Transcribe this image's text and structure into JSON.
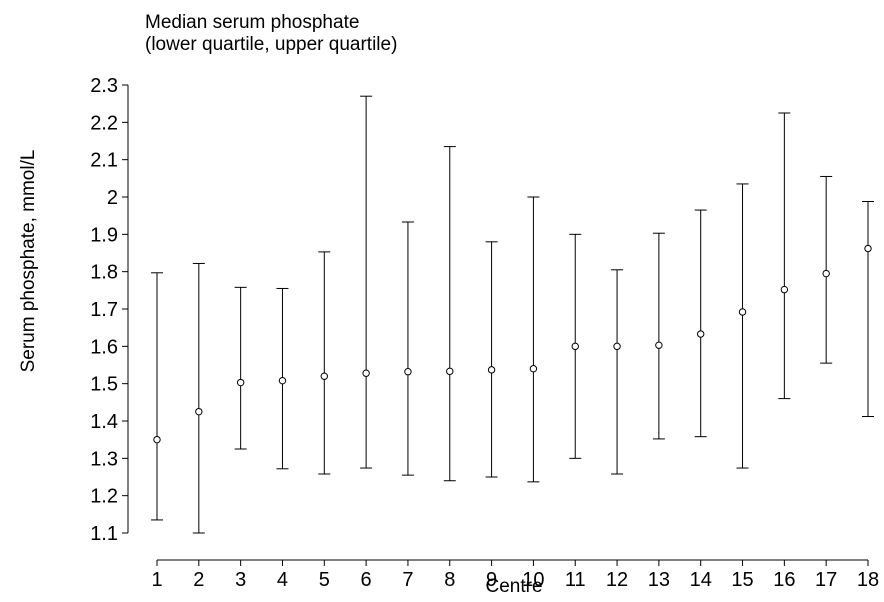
{
  "chart_data": {
    "type": "scatter",
    "title": "Median serum phosphate",
    "subtitle": "(lower quartile, upper quartile)",
    "xlabel": "Centre",
    "ylabel": "Serum phosphate, mmol/L",
    "categories": [
      "1",
      "2",
      "3",
      "4",
      "5",
      "6",
      "7",
      "8",
      "9",
      "10",
      "11",
      "12",
      "13",
      "14",
      "15",
      "16",
      "17",
      "18"
    ],
    "series": [
      {
        "median": [
          1.35,
          1.425,
          1.503,
          1.508,
          1.52,
          1.528,
          1.532,
          1.533,
          1.537,
          1.54,
          1.6,
          1.6,
          1.603,
          1.633,
          1.692,
          1.752,
          1.795,
          1.862
        ],
        "lower_quartile": [
          1.135,
          1.1,
          1.325,
          1.272,
          1.258,
          1.274,
          1.255,
          1.24,
          1.25,
          1.237,
          1.3,
          1.258,
          1.352,
          1.358,
          1.274,
          1.46,
          1.555,
          1.412
        ],
        "upper_quartile": [
          1.797,
          1.822,
          1.758,
          1.755,
          1.853,
          2.27,
          1.933,
          2.135,
          1.88,
          2.0,
          1.9,
          1.805,
          1.903,
          1.965,
          2.035,
          2.225,
          2.055,
          1.988
        ]
      }
    ],
    "yticks": [
      "1.1",
      "1.2",
      "1.3",
      "1.4",
      "1.5",
      "1.6",
      "1.7",
      "1.8",
      "1.9",
      "2",
      "2.1",
      "2.2",
      "2.3"
    ],
    "ylim": [
      1.1,
      2.3
    ],
    "grid": false,
    "legend": "none"
  }
}
